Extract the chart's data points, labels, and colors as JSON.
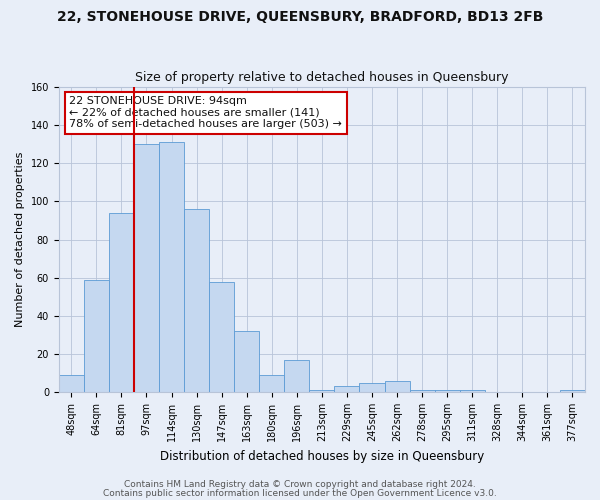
{
  "title": "22, STONEHOUSE DRIVE, QUEENSBURY, BRADFORD, BD13 2FB",
  "subtitle": "Size of property relative to detached houses in Queensbury",
  "xlabel": "Distribution of detached houses by size in Queensbury",
  "ylabel": "Number of detached properties",
  "bar_labels": [
    "48sqm",
    "64sqm",
    "81sqm",
    "97sqm",
    "114sqm",
    "130sqm",
    "147sqm",
    "163sqm",
    "180sqm",
    "196sqm",
    "213sqm",
    "229sqm",
    "245sqm",
    "262sqm",
    "278sqm",
    "295sqm",
    "311sqm",
    "328sqm",
    "344sqm",
    "361sqm",
    "377sqm"
  ],
  "bar_values": [
    9,
    59,
    94,
    130,
    131,
    96,
    58,
    32,
    9,
    17,
    1,
    3,
    5,
    6,
    1,
    1,
    1,
    0,
    0,
    0,
    1
  ],
  "bar_color": "#c5d8f0",
  "bar_edge_color": "#5b9bd5",
  "vline_x_index": 3,
  "vline_color": "#cc0000",
  "annotation_line1": "22 STONEHOUSE DRIVE: 94sqm",
  "annotation_line2": "← 22% of detached houses are smaller (141)",
  "annotation_line3": "78% of semi-detached houses are larger (503) →",
  "annotation_box_color": "#ffffff",
  "annotation_box_edge_color": "#cc0000",
  "ylim": [
    0,
    160
  ],
  "yticks": [
    0,
    20,
    40,
    60,
    80,
    100,
    120,
    140,
    160
  ],
  "background_color": "#e8eef8",
  "grid_color": "#b8c4d8",
  "footer_line1": "Contains HM Land Registry data © Crown copyright and database right 2024.",
  "footer_line2": "Contains public sector information licensed under the Open Government Licence v3.0.",
  "title_fontsize": 10,
  "subtitle_fontsize": 9,
  "xlabel_fontsize": 8.5,
  "ylabel_fontsize": 8,
  "tick_fontsize": 7,
  "annotation_fontsize": 8,
  "footer_fontsize": 6.5
}
